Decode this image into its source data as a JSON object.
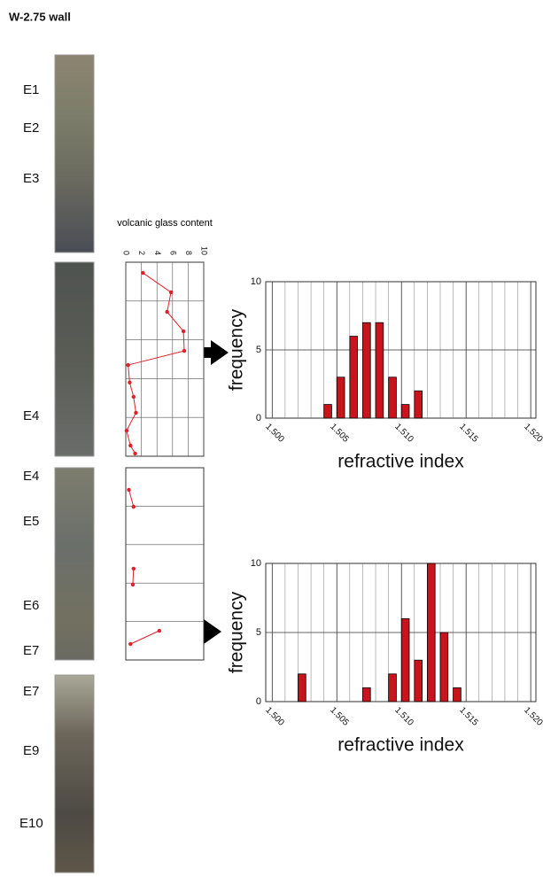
{
  "title": "W-2.75 wall",
  "core_sections": [
    [
      "E1",
      "E2",
      "E3"
    ],
    [
      "E4"
    ],
    [
      "E4",
      "E5",
      "E6",
      "E7"
    ],
    [
      "E7",
      "E9",
      "E10"
    ]
  ],
  "chart_data": [
    {
      "type": "line",
      "title": "volcanic glass content",
      "color": "#e0202a",
      "values": [
        2.2,
        5.8,
        5.3,
        7.4,
        7.5,
        0.3,
        0.5,
        1.0,
        1.3,
        0.1,
        0.6,
        1.2
      ],
      "y": [
        5.5,
        15.5,
        25.6,
        35.6,
        45.7,
        53,
        62,
        69.4,
        77.6,
        86.8,
        94.5,
        98.6
      ],
      "xlim": [
        0,
        10
      ],
      "xticks": [
        0,
        2,
        4,
        6,
        8,
        10
      ],
      "ylim": [
        0,
        100
      ],
      "grid": true
    },
    {
      "type": "line",
      "color": "#e0202a",
      "values": [
        0.4,
        1.0,
        null,
        1.0,
        0.9,
        null,
        4.3,
        0.6
      ],
      "y": [
        11.5,
        20.3,
        null,
        52.5,
        60.8,
        null,
        84.8,
        91.7
      ],
      "xlim": [
        0,
        10
      ],
      "ylim": [
        0,
        100
      ],
      "grid": true
    },
    {
      "type": "bar",
      "x_label": "refractive index",
      "y_label": "frequency",
      "color": "#c8141c",
      "x": [
        1.504,
        1.505,
        1.506,
        1.507,
        1.508,
        1.509,
        1.51,
        1.511
      ],
      "values": [
        1,
        3,
        6,
        7,
        7,
        3,
        1,
        2
      ],
      "xlim": [
        1.4995,
        1.5204
      ],
      "ylim": [
        0,
        10
      ],
      "xticks": [
        {
          "value": 1.5,
          "label": "1.500"
        },
        1.505,
        {
          "value": 1.51,
          "label": "1.510"
        },
        1.515,
        {
          "value": 1.52,
          "label": "1.520"
        }
      ],
      "yticks": [
        0,
        5,
        10
      ],
      "grid": true
    },
    {
      "type": "bar",
      "x_label": "refractive index",
      "y_label": "frequency",
      "color": "#c8141c",
      "x": [
        1.502,
        1.507,
        1.509,
        1.51,
        1.511,
        1.512,
        1.513,
        1.514
      ],
      "values": [
        2,
        1,
        2,
        6,
        3,
        10,
        5,
        1
      ],
      "xlim": [
        1.4995,
        1.5204
      ],
      "ylim": [
        0,
        10
      ],
      "xticks": [
        {
          "value": 1.5,
          "label": "1.500"
        },
        1.505,
        {
          "value": 1.51,
          "label": "1.510"
        },
        1.515,
        {
          "value": 1.52,
          "label": "1.520"
        }
      ],
      "yticks": [
        0,
        5,
        10
      ],
      "grid": true
    }
  ]
}
